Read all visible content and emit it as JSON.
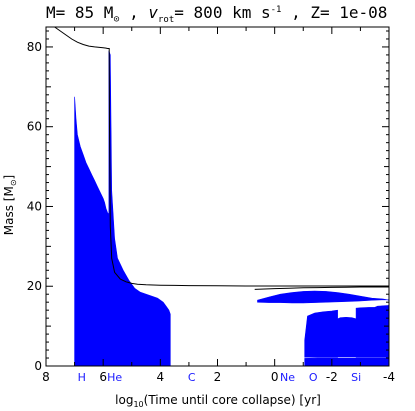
{
  "chart_data": {
    "type": "area",
    "title": {
      "prefix": "M= 85 M",
      "sun": "⊙",
      "mid": " , ",
      "v": "v",
      "rot": "rot",
      "eq": "= 800 km s",
      "exp": "-1",
      "tail": " , Z= 1e-08"
    },
    "xlabel": {
      "pre": "log",
      "sub": "10",
      "post": "(Time until core collapse) [yr]"
    },
    "ylabel": {
      "pre": "Mass [M",
      "sun": "⊙",
      "post": "]"
    },
    "xlim": [
      8,
      -4
    ],
    "ylim": [
      0,
      85
    ],
    "x_ticks": [
      8,
      6,
      4,
      2,
      0,
      -2,
      -4
    ],
    "x_tick_labels": [
      "8",
      "6",
      "4",
      "2",
      "0",
      "-2",
      "-4"
    ],
    "y_ticks": [
      0,
      20,
      40,
      60,
      80
    ],
    "y_tick_labels": [
      "0",
      "20",
      "40",
      "60",
      "80"
    ],
    "burning_labels": [
      {
        "label": "H",
        "x": 6.75
      },
      {
        "label": "He",
        "x": 5.6
      },
      {
        "label": "C",
        "x": 2.9
      },
      {
        "label": "Ne",
        "x": -0.45
      },
      {
        "label": "O",
        "x": -1.35
      },
      {
        "label": "Si",
        "x": -2.85
      }
    ],
    "colors": {
      "convection": "#0000ff",
      "lines": "#000000",
      "burning_labels": "#1a1aff"
    },
    "series": [
      {
        "name": "total mass",
        "x": [
          7.7,
          7.5,
          7.3,
          7.1,
          6.9,
          6.7,
          6.5,
          6.3,
          6.0,
          5.9,
          5.85,
          5.8,
          5.79,
          5.78,
          5.75,
          5.7,
          5.6,
          5.4,
          5.2,
          5.0,
          4.8,
          4.5,
          4.0,
          3.5,
          3.0,
          2.0,
          1.0,
          0.0,
          -1.0,
          -2.0,
          -3.0,
          -4.0
        ],
        "y": [
          85,
          84,
          83,
          82,
          81.2,
          80.6,
          80.2,
          80.0,
          79.8,
          79.7,
          79.6,
          79.6,
          79.6,
          60,
          35,
          27,
          23.5,
          21.8,
          21.1,
          20.7,
          20.5,
          20.35,
          20.25,
          20.2,
          20.15,
          20.1,
          20.05,
          20.05,
          20.05,
          20.05,
          20.05,
          20.05
        ]
      },
      {
        "name": "helium core mass",
        "x": [
          0.7,
          0.0,
          -0.5,
          -1.0,
          -1.5,
          -2.0,
          -2.5,
          -3.0,
          -3.5,
          -4.0
        ],
        "y": [
          19.2,
          19.4,
          19.5,
          19.6,
          19.65,
          19.7,
          19.75,
          19.8,
          19.8,
          19.8
        ]
      }
    ],
    "convective_zones": [
      {
        "name": "core hydrogen burning",
        "x": [
          7.0,
          6.95,
          6.9,
          6.8,
          6.7,
          6.6,
          6.5,
          6.4,
          6.3,
          6.2,
          6.1,
          6.0,
          5.95,
          5.9,
          5.85,
          5.8
        ],
        "top": [
          67.5,
          62,
          58,
          55,
          53,
          51,
          49.5,
          48,
          46.5,
          45,
          43.5,
          42,
          41,
          39.5,
          38.5,
          38
        ],
        "bottom": [
          0,
          0,
          0,
          0,
          0,
          0,
          0,
          0,
          0,
          0,
          0,
          0,
          0,
          0,
          0,
          0
        ]
      },
      {
        "name": "core helium burning",
        "x": [
          5.8,
          5.75,
          5.7,
          5.6,
          5.5,
          5.3,
          5.1,
          4.9,
          4.7,
          4.5,
          4.3,
          4.1,
          3.9,
          3.8,
          3.7,
          3.65
        ],
        "top": [
          79,
          78,
          44,
          32,
          27,
          24,
          21.5,
          19.5,
          18.5,
          18,
          17.5,
          17,
          16,
          15,
          14,
          13
        ],
        "bottom": [
          0,
          0,
          0,
          0,
          0,
          0,
          0,
          0,
          0,
          0,
          0,
          0,
          0,
          0,
          0,
          0
        ]
      },
      {
        "name": "carbon shell burning",
        "x": [
          0.6,
          0.2,
          -0.2,
          -0.6,
          -1.0,
          -1.4,
          -1.8,
          -2.2,
          -2.6,
          -3.0,
          -3.4,
          -3.8,
          -4.0
        ],
        "top": [
          16.5,
          17.3,
          18.0,
          18.4,
          18.7,
          18.8,
          18.7,
          18.4,
          18.0,
          17.5,
          17.0,
          16.8,
          16.5
        ],
        "bottom": [
          16.0,
          15.9,
          15.9,
          15.8,
          15.8,
          15.9,
          16.0,
          16.1,
          16.2,
          16.3,
          16.5,
          16.6,
          16.6
        ]
      },
      {
        "name": "oxygen shell burning",
        "x": [
          -1.05,
          -1.15,
          -1.4,
          -1.7,
          -2.0,
          -2.1,
          -2.2
        ],
        "top": [
          6.5,
          12.5,
          13.3,
          13.6,
          13.8,
          13.9,
          14.0
        ],
        "bottom": [
          2.2,
          2.2,
          2.2,
          2.2,
          2.2,
          2.2,
          2.2
        ]
      },
      {
        "name": "oxygen shell burning 2",
        "x": [
          -2.85,
          -3.0,
          -3.3,
          -3.5,
          -3.6,
          -4.0
        ],
        "top": [
          14.5,
          14.6,
          14.7,
          14.7,
          15.0,
          15.2
        ],
        "bottom": [
          2.2,
          2.2,
          2.2,
          2.2,
          2.2,
          2.2
        ]
      },
      {
        "name": "oxygen shell burning 3",
        "x": [
          -2.2,
          -2.3,
          -2.5,
          -2.7,
          -2.85
        ],
        "top": [
          11.8,
          12.1,
          12.2,
          12.1,
          11.8
        ],
        "bottom": [
          2.3,
          2.3,
          2.3,
          2.3,
          2.3
        ]
      },
      {
        "name": "late core burning",
        "x": [
          -1.05,
          -1.5,
          -2.0,
          -2.5,
          -3.0,
          -3.5,
          -4.0
        ],
        "top": [
          1.9,
          2.0,
          2.0,
          2.0,
          2.0,
          2.0,
          2.0
        ],
        "bottom": [
          0,
          0,
          0,
          0,
          0,
          0,
          0
        ]
      }
    ]
  }
}
